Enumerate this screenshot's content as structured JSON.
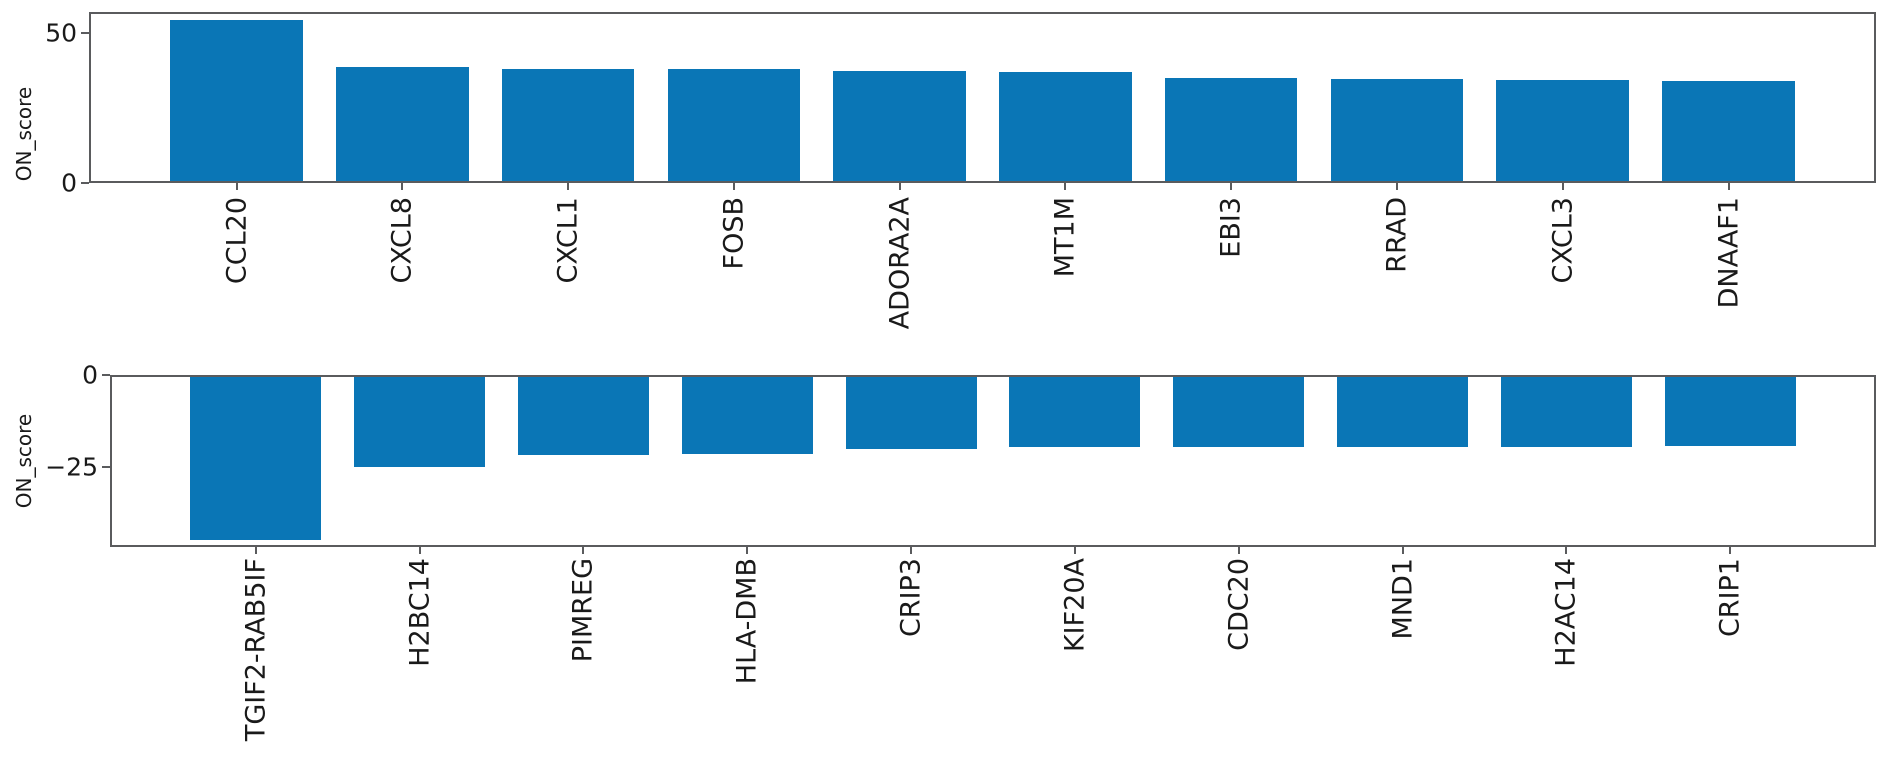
{
  "figure": {
    "bar_color": "#0a76b6",
    "axis_color": "#5a5b5d",
    "text_color": "#1a1a1a",
    "background": "#ffffff"
  },
  "chart_data": [
    {
      "type": "bar",
      "title": "",
      "xlabel": "",
      "ylabel": "ON_score",
      "legend": "none",
      "grid": false,
      "categories": [
        "CCL20",
        "CXCL8",
        "CXCL1",
        "FOSB",
        "ADORA2A",
        "MT1M",
        "EBI3",
        "RRAD",
        "CXCL3",
        "DNAAF1"
      ],
      "values": [
        54.4,
        38.6,
        38.0,
        37.9,
        37.2,
        37.0,
        35.0,
        34.8,
        34.4,
        34.1
      ],
      "ylim": [
        0,
        57
      ],
      "yticks": [
        {
          "value": 50,
          "label": "50"
        },
        {
          "value": 0,
          "label": "0"
        }
      ],
      "bar_color": "#0a76b6"
    },
    {
      "type": "bar",
      "title": "",
      "xlabel": "",
      "ylabel": "ON_score",
      "legend": "none",
      "grid": false,
      "categories": [
        "TGIF2-RAB5IF",
        "H2BC14",
        "PIMREG",
        "HLA-DMB",
        "CRIP3",
        "KIF20A",
        "CDC20",
        "MND1",
        "H2AC14",
        "CRIP1"
      ],
      "values": [
        -44.7,
        -25.1,
        -21.6,
        -21.4,
        -20.1,
        -19.6,
        -19.5,
        -19.5,
        -19.4,
        -19.3
      ],
      "ylim": [
        -46.7,
        0
      ],
      "yticks": [
        {
          "value": 0,
          "label": "0"
        },
        {
          "value": -25,
          "label": "−25"
        }
      ],
      "bar_color": "#0a76b6"
    }
  ]
}
